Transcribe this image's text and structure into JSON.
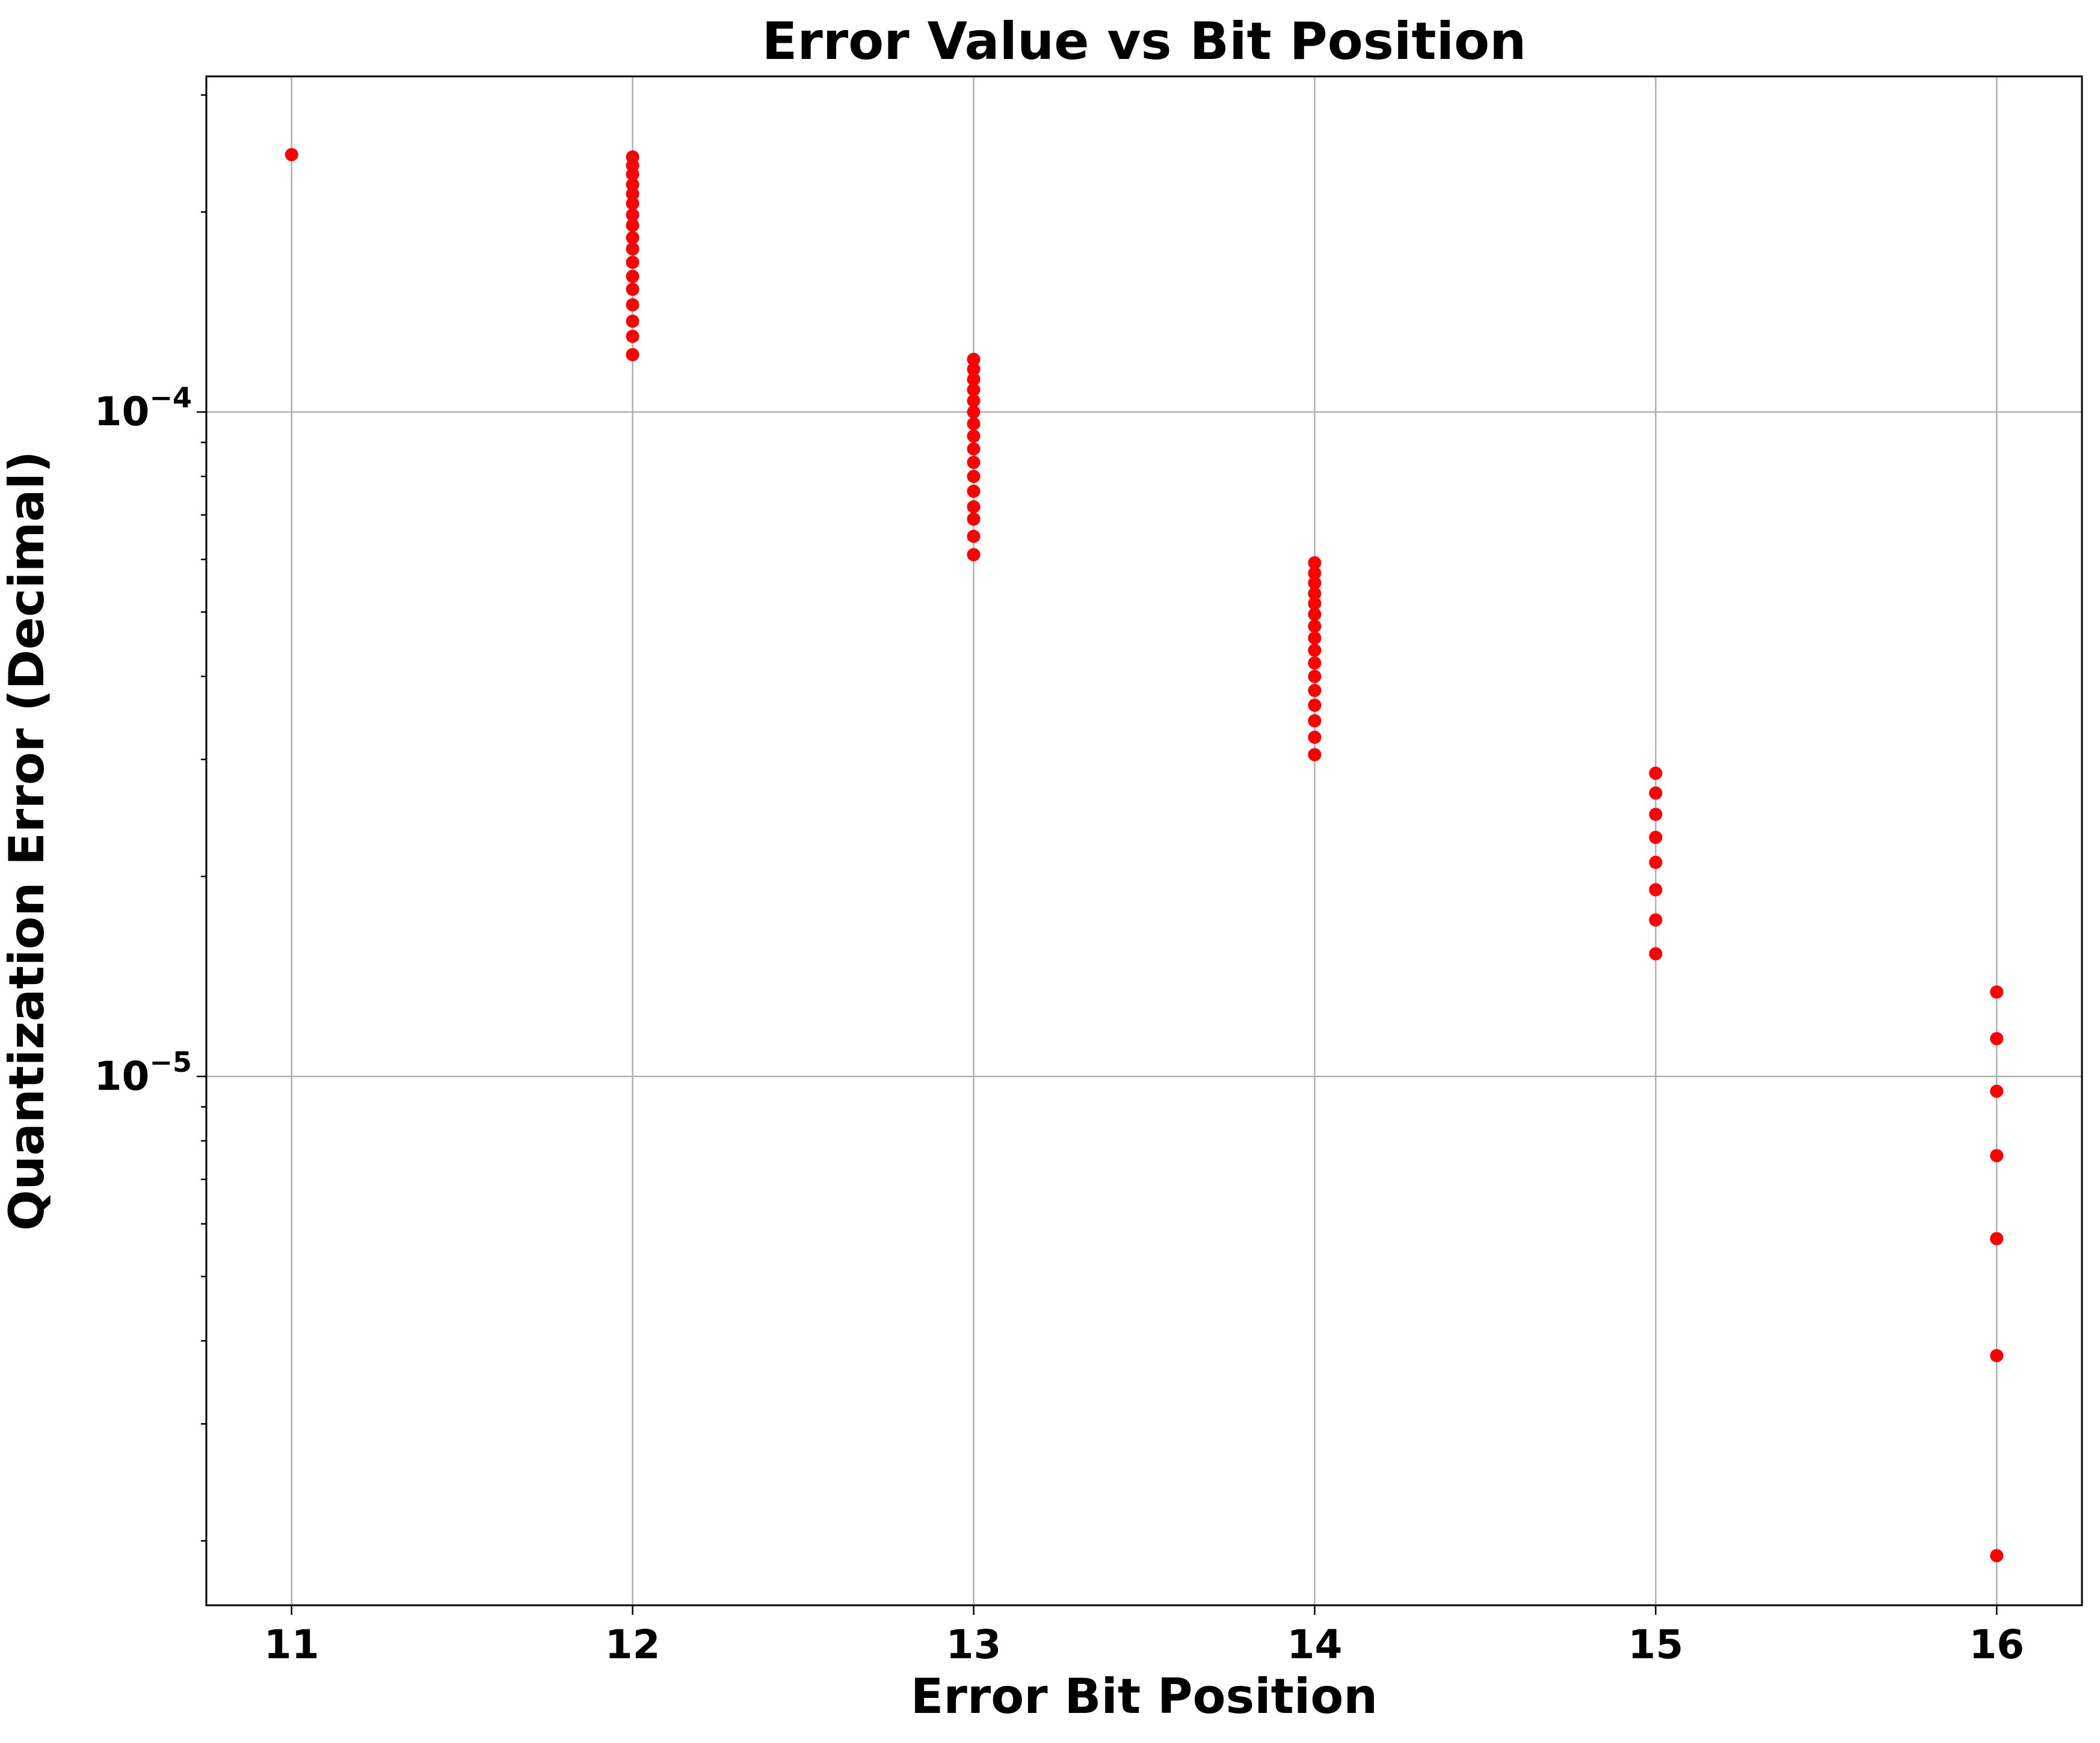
{
  "chart_data": {
    "type": "scatter",
    "title": "Error Value vs Bit Position",
    "xlabel": "Error Bit Position",
    "ylabel": "Quantization Error (Decimal)",
    "xlim": [
      10.75,
      16.25
    ],
    "ylim": [
      1.6e-06,
      0.00032
    ],
    "yscale": "log",
    "grid": true,
    "x_ticks": [
      11,
      12,
      13,
      14,
      15,
      16
    ],
    "y_ticks": [
      {
        "value": 1e-05,
        "base": "10",
        "exp": "−5"
      },
      {
        "value": 0.0001,
        "base": "10",
        "exp": "−4"
      }
    ],
    "marker_color": "#ff0000",
    "points": [
      {
        "x": 11,
        "y": 0.000244
      },
      {
        "x": 12,
        "y": 0.000242
      },
      {
        "x": 12,
        "y": 0.000235
      },
      {
        "x": 12,
        "y": 0.000228
      },
      {
        "x": 12,
        "y": 0.00022
      },
      {
        "x": 12,
        "y": 0.000213
      },
      {
        "x": 12,
        "y": 0.000206
      },
      {
        "x": 12,
        "y": 0.000198
      },
      {
        "x": 12,
        "y": 0.000191
      },
      {
        "x": 12,
        "y": 0.000183
      },
      {
        "x": 12,
        "y": 0.000176
      },
      {
        "x": 12,
        "y": 0.000168
      },
      {
        "x": 12,
        "y": 0.00016
      },
      {
        "x": 12,
        "y": 0.000153
      },
      {
        "x": 12,
        "y": 0.000145
      },
      {
        "x": 12,
        "y": 0.000137
      },
      {
        "x": 12,
        "y": 0.00013
      },
      {
        "x": 12,
        "y": 0.000122
      },
      {
        "x": 13,
        "y": 0.00012
      },
      {
        "x": 13,
        "y": 0.000116
      },
      {
        "x": 13,
        "y": 0.000112
      },
      {
        "x": 13,
        "y": 0.000108
      },
      {
        "x": 13,
        "y": 0.000104
      },
      {
        "x": 13,
        "y": 0.0001
      },
      {
        "x": 13,
        "y": 9.6e-05
      },
      {
        "x": 13,
        "y": 9.2e-05
      },
      {
        "x": 13,
        "y": 8.8e-05
      },
      {
        "x": 13,
        "y": 8.4e-05
      },
      {
        "x": 13,
        "y": 8e-05
      },
      {
        "x": 13,
        "y": 7.6e-05
      },
      {
        "x": 13,
        "y": 7.2e-05
      },
      {
        "x": 13,
        "y": 6.9e-05
      },
      {
        "x": 13,
        "y": 6.5e-05
      },
      {
        "x": 13,
        "y": 6.1e-05
      },
      {
        "x": 14,
        "y": 5.93e-05
      },
      {
        "x": 14,
        "y": 5.72e-05
      },
      {
        "x": 14,
        "y": 5.53e-05
      },
      {
        "x": 14,
        "y": 5.33e-05
      },
      {
        "x": 14,
        "y": 5.15e-05
      },
      {
        "x": 14,
        "y": 4.96e-05
      },
      {
        "x": 14,
        "y": 4.76e-05
      },
      {
        "x": 14,
        "y": 4.57e-05
      },
      {
        "x": 14,
        "y": 4.38e-05
      },
      {
        "x": 14,
        "y": 4.19e-05
      },
      {
        "x": 14,
        "y": 4e-05
      },
      {
        "x": 14,
        "y": 3.81e-05
      },
      {
        "x": 14,
        "y": 3.62e-05
      },
      {
        "x": 14,
        "y": 3.43e-05
      },
      {
        "x": 14,
        "y": 3.24e-05
      },
      {
        "x": 14,
        "y": 3.05e-05
      },
      {
        "x": 15,
        "y": 2.86e-05
      },
      {
        "x": 15,
        "y": 2.67e-05
      },
      {
        "x": 15,
        "y": 2.48e-05
      },
      {
        "x": 15,
        "y": 2.29e-05
      },
      {
        "x": 15,
        "y": 2.1e-05
      },
      {
        "x": 15,
        "y": 1.91e-05
      },
      {
        "x": 15,
        "y": 1.72e-05
      },
      {
        "x": 15,
        "y": 1.53e-05
      },
      {
        "x": 16,
        "y": 1.34e-05
      },
      {
        "x": 16,
        "y": 1.14e-05
      },
      {
        "x": 16,
        "y": 9.5e-06
      },
      {
        "x": 16,
        "y": 7.6e-06
      },
      {
        "x": 16,
        "y": 5.7e-06
      },
      {
        "x": 16,
        "y": 3.8e-06
      },
      {
        "x": 16,
        "y": 1.9e-06
      }
    ]
  }
}
